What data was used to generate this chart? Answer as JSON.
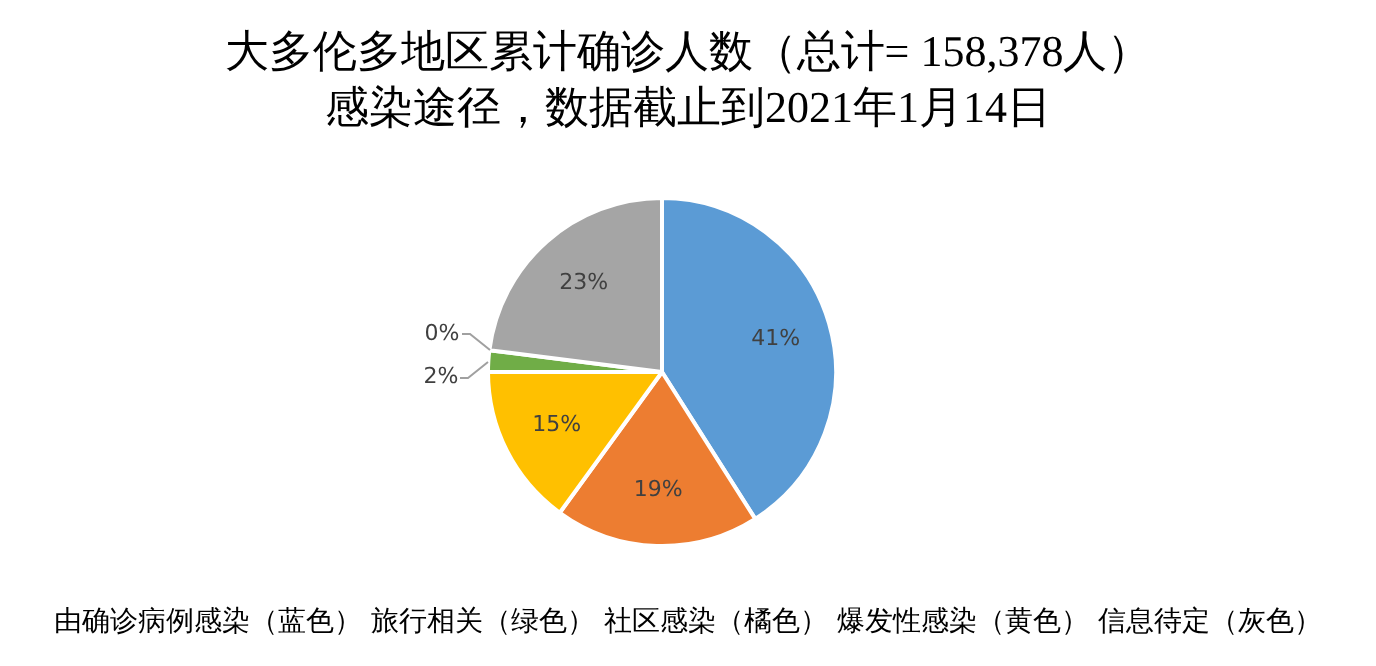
{
  "chart_data": {
    "type": "pie",
    "title": "大多伦多地区累计确诊人数（总计= 158,378人）",
    "subtitle": "感染途径，数据截止到2021年1月14日",
    "categories": [
      null,
      null,
      null,
      null,
      null,
      null
    ],
    "values": [
      41,
      19,
      15,
      2,
      0,
      23
    ],
    "colors": [
      "#5b9bd5",
      "#ed7d31",
      "#ffc000",
      "#70ad47",
      "#264478",
      "#a5a5a5"
    ],
    "value_labels": [
      "41%",
      "19%",
      "15%",
      "2%",
      "0%",
      "23%"
    ],
    "legend": false,
    "annotations": [
      "由确诊病例感染（蓝色） 旅行相关（绿色） 社区感染（橘色） 爆发性感染（黄色） 信息待定（灰色）"
    ]
  }
}
